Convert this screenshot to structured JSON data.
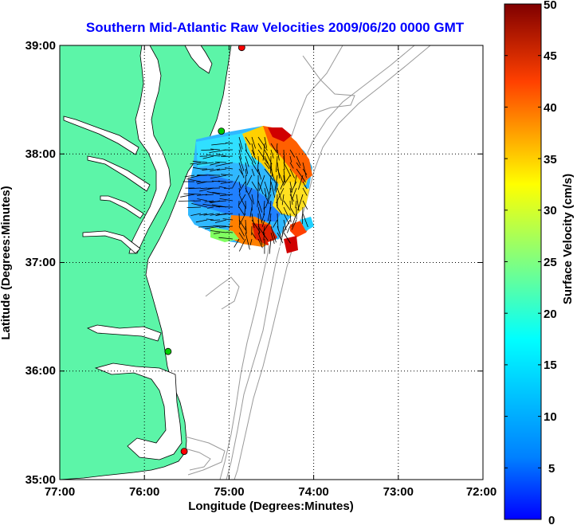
{
  "title": "Southern Mid-Atlantic Raw Velocities 2009/06/20 0000 GMT",
  "x_axis": {
    "label": "Longitude (Degrees:Minutes)",
    "ticks": [
      "77:00",
      "76:00",
      "75:00",
      "74:00",
      "73:00",
      "72:00"
    ]
  },
  "y_axis": {
    "label": "Latitude (Degrees:Minutes)",
    "ticks": [
      "39:00",
      "38:00",
      "37:00",
      "36:00",
      "35:00"
    ]
  },
  "colorbar": {
    "label": "Surface Velocity (cm/s)",
    "ticks": [
      "50",
      "45",
      "40",
      "35",
      "30",
      "25",
      "20",
      "15",
      "10",
      "5",
      "0"
    ],
    "min": 0,
    "max": 50,
    "colormap": "jet"
  },
  "colors": {
    "land": "#5cf5a8",
    "title": "#0000ff",
    "bathymetry": "#999999",
    "grid": "#000000"
  },
  "chart_data": {
    "type": "map",
    "extent": {
      "lon": [
        -77.0,
        -72.0
      ],
      "lat": [
        35.0,
        39.0
      ]
    },
    "grid": "dotted",
    "radar_sites": [
      {
        "lon": -74.85,
        "lat": 38.98,
        "color": "#ff0000"
      },
      {
        "lon": -75.09,
        "lat": 38.21,
        "color": "#00cc00"
      },
      {
        "lon": -75.72,
        "lat": 36.18,
        "color": "#00cc00"
      },
      {
        "lon": -75.53,
        "lat": 35.26,
        "color": "#ff0000"
      }
    ]
  }
}
